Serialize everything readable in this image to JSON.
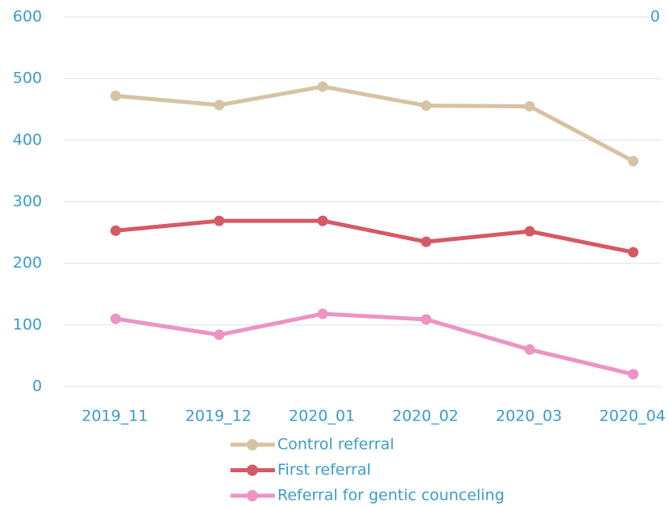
{
  "chart_data": {
    "type": "line",
    "categories": [
      "2019_11",
      "2019_12",
      "2020_01",
      "2020_02",
      "2020_03",
      "2020_04"
    ],
    "series": [
      {
        "name": "Control referral",
        "color": "#d6c3a3",
        "values": [
          472,
          457,
          487,
          456,
          455,
          366
        ]
      },
      {
        "name": "First referral",
        "color": "#d45a66",
        "values": [
          253,
          269,
          269,
          235,
          252,
          218
        ]
      },
      {
        "name": "Referral for gentic counceling",
        "color": "#ec94c3",
        "values": [
          110,
          84,
          118,
          109,
          60,
          20
        ]
      }
    ],
    "ylim": [
      0,
      600
    ],
    "yticks": [
      0,
      100,
      200,
      300,
      400,
      500,
      600
    ],
    "y2ticks": [
      0
    ],
    "grid": true
  }
}
